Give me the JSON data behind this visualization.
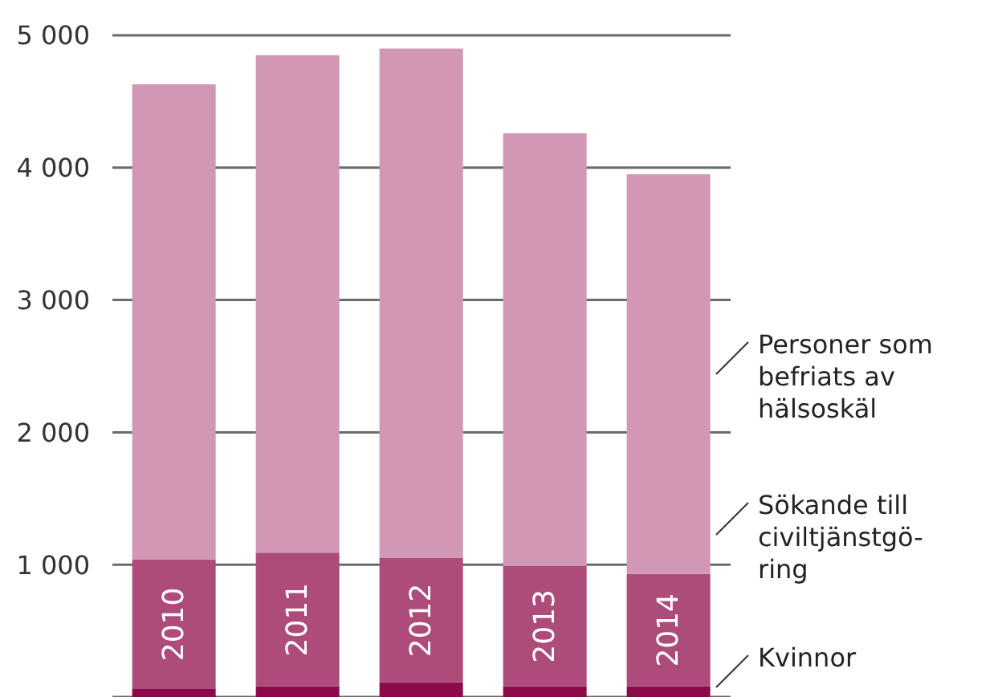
{
  "chart_data": {
    "type": "bar",
    "stacked": true,
    "categories": [
      "2010",
      "2011",
      "2012",
      "2013",
      "2014"
    ],
    "series": [
      {
        "name": "Kvinnor",
        "color": "#8c0a4a",
        "values": [
          60,
          80,
          110,
          80,
          80
        ]
      },
      {
        "name": "Sökande till civiltjänstgö-ring",
        "color": "#ad4c7b",
        "values": [
          980,
          1010,
          940,
          910,
          850
        ]
      },
      {
        "name": "Personer som befriats av hälsoskäl",
        "color": "#d197b4",
        "values": [
          3590,
          3760,
          3850,
          3270,
          3020
        ]
      }
    ],
    "ylim": [
      0,
      5000
    ],
    "yticks": [
      {
        "value": 1000,
        "label": "1 000"
      },
      {
        "value": 2000,
        "label": "2 000"
      },
      {
        "value": 3000,
        "label": "3 000"
      },
      {
        "value": 4000,
        "label": "4 000"
      },
      {
        "value": 5000,
        "label": "5 000"
      }
    ],
    "grid": "y",
    "legend": "right"
  }
}
